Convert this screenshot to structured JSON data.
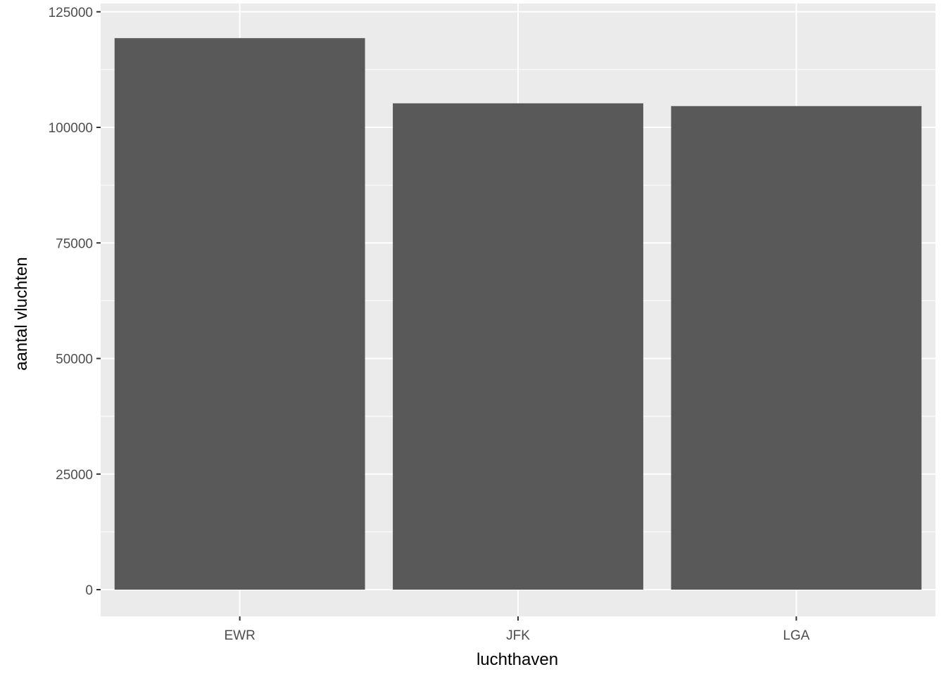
{
  "chart_data": {
    "type": "bar",
    "title": "",
    "xlabel": "luchthaven",
    "ylabel": "aantal vluchten",
    "categories": [
      "EWR",
      "JFK",
      "LGA"
    ],
    "values": [
      119300,
      105200,
      104600
    ],
    "ylim": [
      -5800,
      127000
    ],
    "yticks": [
      0,
      25000,
      50000,
      75000,
      100000,
      125000
    ],
    "ytick_labels": [
      "0",
      "25000",
      "50000",
      "75000",
      "100000",
      "125000"
    ],
    "grid": true,
    "colors": {
      "bar": "#595959",
      "panel": "#EBEBEB",
      "grid": "#FFFFFF",
      "text": "#4D4D4D"
    }
  }
}
